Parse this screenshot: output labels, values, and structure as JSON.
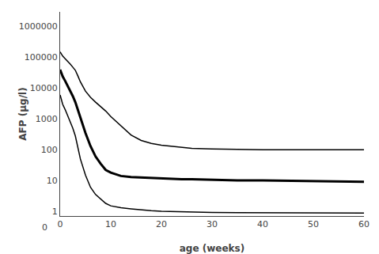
{
  "chart_data": {
    "type": "line",
    "xlabel": "age (weeks)",
    "ylabel": "AFP (µg/l)",
    "log": "y",
    "grid": false,
    "xlim": [
      0,
      60
    ],
    "xticks": [
      0,
      10,
      20,
      30,
      40,
      50,
      60
    ],
    "ylim": [
      0.7,
      3000000
    ],
    "yticks": [
      1,
      10,
      100,
      1000,
      10000,
      100000,
      1000000
    ],
    "annotations": [
      "0"
    ],
    "x": [
      0,
      0.2,
      0.5,
      1,
      1.5,
      2,
      2.5,
      3,
      3.5,
      4,
      5,
      6,
      7,
      8,
      9,
      10,
      12,
      14,
      16,
      18,
      20,
      22,
      24,
      26,
      30,
      35,
      40,
      50,
      60
    ],
    "series": [
      {
        "color": "#000000",
        "values": [
          150000,
          130000,
          110000,
          90000,
          75000,
          60000,
          48000,
          38000,
          25000,
          16000,
          8000,
          5000,
          3500,
          2500,
          1800,
          1200,
          600,
          300,
          200,
          160,
          140,
          130,
          120,
          110,
          105,
          102,
          100,
          100,
          100
        ]
      },
      {
        "color": "#000000",
        "values": [
          40000,
          32000,
          24000,
          17000,
          12000,
          8000,
          5500,
          3500,
          2000,
          1000,
          350,
          130,
          60,
          35,
          22,
          18,
          14,
          13,
          12.5,
          12,
          12,
          11.5,
          11,
          11,
          10.5,
          10,
          10,
          9.5,
          9
        ]
      },
      {
        "color": "#000000",
        "values": [
          6000,
          4500,
          3000,
          2000,
          1300,
          800,
          500,
          280,
          120,
          50,
          15,
          6,
          3.5,
          2.5,
          1.8,
          1.5,
          1.3,
          1.2,
          1.1,
          1.05,
          1.0,
          0.98,
          0.96,
          0.94,
          0.92,
          0.9,
          0.89,
          0.88,
          0.87
        ]
      }
    ]
  }
}
